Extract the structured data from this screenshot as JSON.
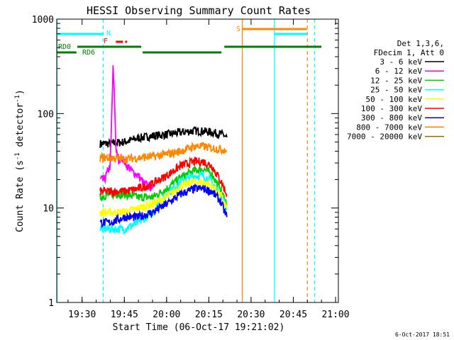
{
  "chart_data": {
    "type": "line",
    "title": "HESSI Observing Summary Count Rates",
    "xlabel": "Start Time (06-Oct-17 19:21:02)",
    "ylabel_main": "Count Rate (s",
    "ylabel_sup1": "-1",
    "ylabel_mid": " detector",
    "ylabel_sup2": "-1",
    "ylabel_end": ")",
    "y_scale": "log",
    "ylim": [
      1,
      1000
    ],
    "xlim_minutes": [
      19.35,
      21.0
    ],
    "x_ticks": [
      {
        "label": "19:30",
        "minute": 1170
      },
      {
        "label": "19:45",
        "minute": 1185
      },
      {
        "label": "20:00",
        "minute": 1200
      },
      {
        "label": "20:15",
        "minute": 1215
      },
      {
        "label": "20:30",
        "minute": 1230
      },
      {
        "label": "20:45",
        "minute": 1245
      },
      {
        "label": "21:00",
        "minute": 1260
      }
    ],
    "y_ticks": [
      {
        "label": "1",
        "value": 1
      },
      {
        "label": "10",
        "value": 10
      },
      {
        "label": "100",
        "value": 100
      },
      {
        "label": "1000",
        "value": 1000
      }
    ],
    "legend_header": [
      "Det 1,3,6,",
      "FDecim 1, Att 0"
    ],
    "series": [
      {
        "name": "3 - 6 keV",
        "color": "#000000",
        "points": [
          [
            1176.4,
            48
          ],
          [
            1180,
            48
          ],
          [
            1185,
            50
          ],
          [
            1190,
            55
          ],
          [
            1195,
            58
          ],
          [
            1200,
            60
          ],
          [
            1205,
            63
          ],
          [
            1210,
            66
          ],
          [
            1215,
            64
          ],
          [
            1220,
            60
          ],
          [
            1221.4,
            56
          ]
        ]
      },
      {
        "name": "6 - 12 keV",
        "color": "#ff00ff",
        "points": [
          [
            1176.4,
            20
          ],
          [
            1178,
            20
          ],
          [
            1179,
            24
          ],
          [
            1180,
            28
          ],
          [
            1181,
            300
          ],
          [
            1181.5,
            150
          ],
          [
            1182,
            45
          ],
          [
            1183,
            30
          ],
          [
            1184,
            35
          ],
          [
            1186,
            28
          ],
          [
            1188,
            24
          ],
          [
            1190,
            22
          ],
          [
            1192,
            18
          ],
          [
            1194,
            17
          ],
          [
            1195,
            16
          ]
        ]
      },
      {
        "name": "12 - 25 keV",
        "color": "#00cc00",
        "points": [
          [
            1176.4,
            13
          ],
          [
            1180,
            14
          ],
          [
            1185,
            14
          ],
          [
            1190,
            13
          ],
          [
            1195,
            13
          ],
          [
            1200,
            16
          ],
          [
            1205,
            21
          ],
          [
            1210,
            25
          ],
          [
            1213,
            26
          ],
          [
            1216,
            23
          ],
          [
            1219,
            16
          ],
          [
            1221.4,
            11
          ]
        ]
      },
      {
        "name": "25 - 50 keV",
        "color": "#00ffff",
        "points": [
          [
            1176.4,
            6
          ],
          [
            1180,
            6
          ],
          [
            1185,
            6
          ],
          [
            1190,
            7
          ],
          [
            1195,
            9
          ],
          [
            1200,
            14
          ],
          [
            1205,
            19
          ],
          [
            1210,
            22
          ],
          [
            1213,
            22
          ],
          [
            1216,
            19
          ],
          [
            1219,
            14
          ],
          [
            1221.4,
            10
          ]
        ]
      },
      {
        "name": "50 - 100 keV",
        "color": "#ffff00",
        "points": [
          [
            1176.4,
            9
          ],
          [
            1185,
            9
          ],
          [
            1195,
            11
          ],
          [
            1200,
            13
          ],
          [
            1205,
            17
          ],
          [
            1210,
            19
          ],
          [
            1215,
            18
          ],
          [
            1219,
            14
          ],
          [
            1221.4,
            10
          ]
        ]
      },
      {
        "name": "100 - 300 keV",
        "color": "#ff0000",
        "points": [
          [
            1176.4,
            15
          ],
          [
            1180,
            15
          ],
          [
            1185,
            15
          ],
          [
            1190,
            16
          ],
          [
            1195,
            18
          ],
          [
            1200,
            22
          ],
          [
            1205,
            28
          ],
          [
            1210,
            31
          ],
          [
            1213,
            31
          ],
          [
            1216,
            28
          ],
          [
            1219,
            20
          ],
          [
            1221.4,
            14
          ]
        ]
      },
      {
        "name": "300 - 800 keV",
        "color": "#0000ff",
        "points": [
          [
            1176.4,
            7
          ],
          [
            1180,
            7
          ],
          [
            1185,
            8
          ],
          [
            1190,
            8
          ],
          [
            1195,
            9
          ],
          [
            1200,
            11
          ],
          [
            1205,
            14
          ],
          [
            1210,
            16
          ],
          [
            1213,
            16
          ],
          [
            1216,
            15
          ],
          [
            1219,
            12
          ],
          [
            1221.4,
            8
          ]
        ]
      },
      {
        "name": "800 - 7000 keV",
        "color": "#ff8800",
        "points": [
          [
            1176.4,
            34
          ],
          [
            1180,
            34
          ],
          [
            1185,
            33
          ],
          [
            1190,
            34
          ],
          [
            1195,
            35
          ],
          [
            1200,
            37
          ],
          [
            1205,
            40
          ],
          [
            1210,
            45
          ],
          [
            1213,
            45
          ],
          [
            1216,
            43
          ],
          [
            1219,
            42
          ],
          [
            1221.4,
            41
          ]
        ]
      },
      {
        "name": "7000 - 20000 keV",
        "color": "#996600",
        "points": []
      }
    ],
    "flags": [
      {
        "label": "N",
        "color": "#00ffff",
        "segments": [
          [
            1161,
            1177.5
          ]
        ]
      },
      {
        "label": "F",
        "color": "#ff0000",
        "segments": [
          [
            1182,
            1186
          ]
        ]
      },
      {
        "label": "S",
        "color": "#ff8800",
        "segments": [
          [
            1226.9,
            1249.8
          ]
        ]
      },
      {
        "label": "",
        "color": "#00ffff",
        "segments": [
          [
            1238.3,
            1250
          ]
        ]
      },
      {
        "label": "RD0",
        "color": "#008000",
        "segments": [
          [
            1168.3,
            1191
          ],
          [
            1220.5,
            1255
          ]
        ]
      },
      {
        "label": "RD6",
        "color": "#008000",
        "segments": [
          [
            1161,
            1168
          ],
          [
            1191.5,
            1219.5
          ]
        ]
      }
    ],
    "vlines": [
      {
        "minute": 1161.1,
        "color": "#00ffff",
        "dash": false
      },
      {
        "minute": 1177.5,
        "color": "#00ffff",
        "dash": true
      },
      {
        "minute": 1226.9,
        "color": "#ff8800",
        "dash": false
      },
      {
        "minute": 1238.3,
        "color": "#00ffff",
        "dash": false
      },
      {
        "minute": 1250.0,
        "color": "#ff8800",
        "dash": true
      },
      {
        "minute": 1252.6,
        "color": "#00ffff",
        "dash": true
      }
    ]
  },
  "footer_timestamp": "6-Oct-2017 18:51"
}
